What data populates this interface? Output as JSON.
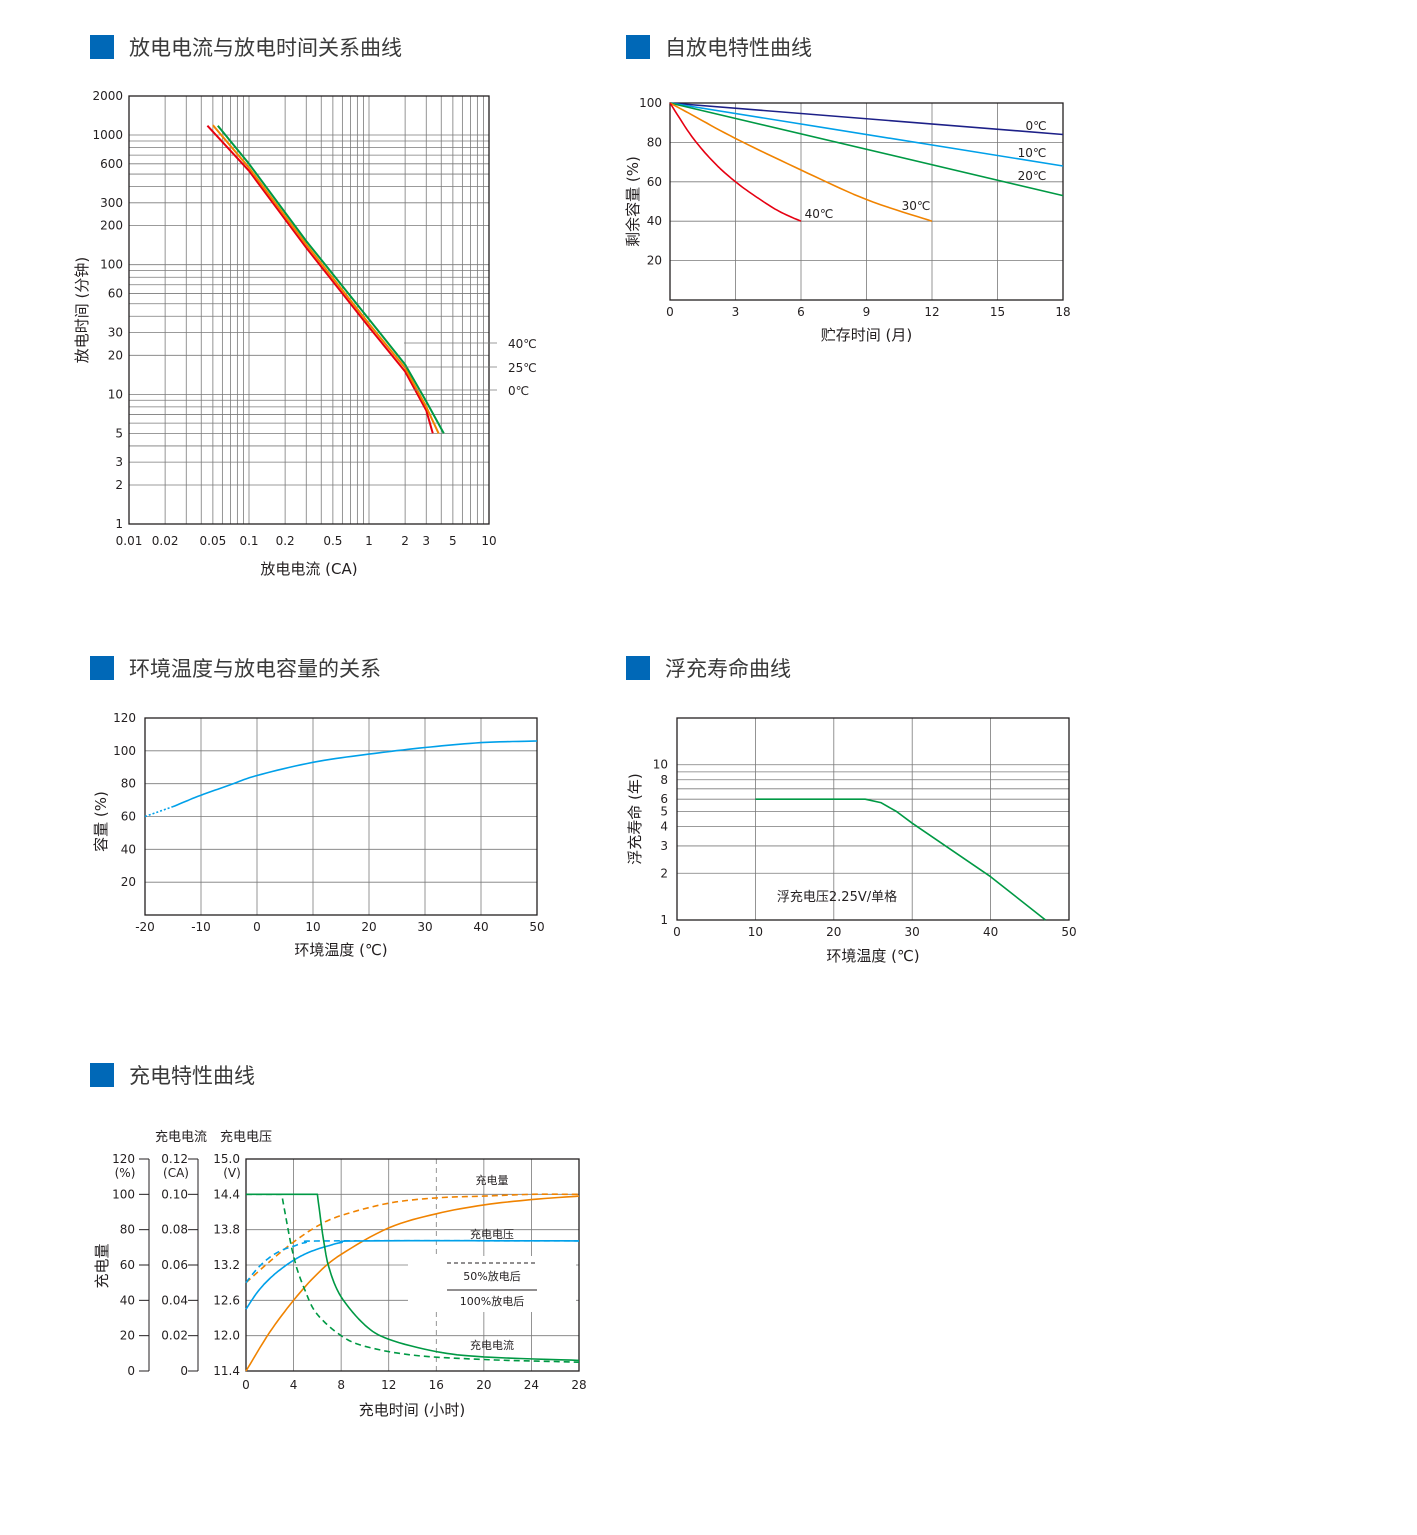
{
  "sections": {
    "s1": "放电电流与放电时间关系曲线",
    "s2": "自放电特性曲线",
    "s3": "环境温度与放电容量的关系",
    "s4": "浮充寿命曲线",
    "s5": "充电特性曲线"
  },
  "chart_data": [
    {
      "id": "discharge",
      "type": "line",
      "xscale": "log",
      "yscale": "log",
      "xlabel": "放电电流 (CA)",
      "ylabel": "放电时间 (分钟)",
      "xlim": [
        0.01,
        10
      ],
      "ylim": [
        1,
        2000
      ],
      "x_ticks": [
        "0.01",
        "0.02",
        "0.05",
        "0.1",
        "0.2",
        "0.5",
        "1",
        "2",
        "3",
        "5",
        "10"
      ],
      "y_ticks": [
        "2000",
        "1000",
        "600",
        "300",
        "200",
        "100",
        "60",
        "30",
        "20",
        "10",
        "5",
        "3",
        "2",
        "1"
      ],
      "colors": [
        "#e60012",
        "#f08300",
        "#009944"
      ],
      "series": [
        {
          "name": "40℃",
          "points": [
            [
              0.045,
              1180
            ],
            [
              0.1,
              530
            ],
            [
              0.3,
              135
            ],
            [
              1,
              33
            ],
            [
              2,
              15
            ],
            [
              3,
              7.5
            ],
            [
              3.4,
              5
            ]
          ]
        },
        {
          "name": "25℃",
          "points": [
            [
              0.05,
              1190
            ],
            [
              0.1,
              560
            ],
            [
              0.3,
              143
            ],
            [
              1,
              35
            ],
            [
              2,
              16
            ],
            [
              3,
              8
            ],
            [
              3.8,
              5
            ]
          ]
        },
        {
          "name": "0℃",
          "points": [
            [
              0.055,
              1180
            ],
            [
              0.1,
              600
            ],
            [
              0.3,
              152
            ],
            [
              1,
              38
            ],
            [
              2,
              17
            ],
            [
              3,
              8.8
            ],
            [
              4.2,
              5
            ]
          ]
        }
      ]
    },
    {
      "id": "selfdischarge",
      "type": "line",
      "xlabel": "贮存时间 (月)",
      "ylabel": "剩余容量 (%)",
      "xlim": [
        0,
        18
      ],
      "ylim": [
        0,
        100
      ],
      "x_ticks": [
        "0",
        "3",
        "6",
        "9",
        "12",
        "15",
        "18"
      ],
      "y_ticks": [
        "100",
        "80",
        "60",
        "40",
        "20"
      ],
      "colors": [
        "#1d2088",
        "#00a0e9",
        "#009944",
        "#f08300",
        "#e60012"
      ],
      "series": [
        {
          "name": "0℃",
          "points": [
            [
              0,
              100
            ],
            [
              18,
              84
            ]
          ]
        },
        {
          "name": "10℃",
          "points": [
            [
              0,
              100
            ],
            [
              18,
              68
            ]
          ]
        },
        {
          "name": "20℃",
          "points": [
            [
              0,
              100
            ],
            [
              18,
              53
            ]
          ]
        },
        {
          "name": "30℃",
          "points": [
            [
              0,
              100
            ],
            [
              1,
              94
            ],
            [
              3,
              82
            ],
            [
              6,
              66
            ],
            [
              9,
              51
            ],
            [
              12,
              40
            ]
          ]
        },
        {
          "name": "40℃",
          "points": [
            [
              0,
              100
            ],
            [
              1,
              83
            ],
            [
              2,
              70
            ],
            [
              3,
              60
            ],
            [
              4,
              52
            ],
            [
              5,
              45
            ],
            [
              6,
              40
            ]
          ]
        }
      ]
    },
    {
      "id": "tempcap",
      "type": "line",
      "xlabel": "环境温度 (℃)",
      "ylabel": "容量 (%)",
      "xlim": [
        -20,
        50
      ],
      "ylim": [
        0,
        120
      ],
      "x_ticks": [
        "-20",
        "-10",
        "0",
        "10",
        "20",
        "30",
        "40",
        "50"
      ],
      "y_ticks": [
        "120",
        "100",
        "80",
        "60",
        "40",
        "20"
      ],
      "colors": [
        "#00a0e9"
      ],
      "series": [
        {
          "dashed_points": [
            [
              -20,
              60
            ],
            [
              -15,
              66
            ]
          ],
          "points": [
            [
              -15,
              66
            ],
            [
              -10,
              73
            ],
            [
              -5,
              79
            ],
            [
              0,
              85
            ],
            [
              10,
              93
            ],
            [
              20,
              98
            ],
            [
              30,
              102
            ],
            [
              40,
              105
            ],
            [
              50,
              106
            ]
          ]
        }
      ]
    },
    {
      "id": "floatlife",
      "type": "line",
      "yscale": "log",
      "xlabel": "环境温度 (℃)",
      "ylabel": "浮充寿命 (年)",
      "xlim": [
        0,
        50
      ],
      "ylim": [
        1,
        20
      ],
      "x_ticks": [
        "0",
        "10",
        "20",
        "30",
        "40",
        "50"
      ],
      "y_ticks": [
        "10",
        "8",
        "6",
        "5",
        "4",
        "3",
        "2",
        "1"
      ],
      "annotation": "浮充电压2.25V/单格",
      "colors": [
        "#009944"
      ],
      "series": [
        {
          "points": [
            [
              10,
              6
            ],
            [
              24,
              6
            ],
            [
              26,
              5.7
            ],
            [
              28,
              5
            ],
            [
              30,
              4.2
            ],
            [
              40,
              1.9
            ],
            [
              47,
              1
            ]
          ]
        }
      ]
    },
    {
      "id": "charge",
      "type": "line",
      "xlabel": "充电时间 (小时)",
      "ylabel": "充电量",
      "axis_headers": [
        "充电电流",
        "充电电压"
      ],
      "units_pct": "(%)",
      "units_ca": "(CA)",
      "units_v": "(V)",
      "xlim": [
        0,
        28
      ],
      "x_ticks": [
        "0",
        "4",
        "8",
        "12",
        "16",
        "20",
        "24",
        "28"
      ],
      "y_pct_ticks": [
        "120",
        "100",
        "80",
        "60",
        "40",
        "20",
        "0"
      ],
      "y_ca_ticks": [
        "0.12",
        "0.10",
        "0.08",
        "0.06",
        "0.04",
        "0.02",
        "0"
      ],
      "y_v_ticks": [
        "15.0",
        "14.4",
        "13.8",
        "13.2",
        "12.6",
        "12.0",
        "11.4"
      ],
      "vlim": [
        11.4,
        15.0
      ],
      "labels": {
        "charge_amount": "充电量",
        "charge_voltage": "充电电压",
        "charge_current": "充电电流"
      },
      "legend": {
        "dashed": "50%放电后",
        "solid": "100%放电后"
      },
      "colors": {
        "amount": "#f08300",
        "voltage": "#00a0e9",
        "current": "#009944"
      },
      "series": [
        {
          "name": "充电量",
          "style": "dashed",
          "points": [
            [
              0,
              50
            ],
            [
              2,
              62
            ],
            [
              4,
              73
            ],
            [
              6,
              82
            ],
            [
              8,
              88
            ],
            [
              12,
              95
            ],
            [
              16,
              98
            ],
            [
              20,
              99
            ],
            [
              24,
              100
            ],
            [
              28,
              100
            ]
          ]
        },
        {
          "name": "充电量",
          "style": "solid",
          "points": [
            [
              0,
              0
            ],
            [
              2,
              22
            ],
            [
              4,
              40
            ],
            [
              6,
              55
            ],
            [
              8,
              66
            ],
            [
              12,
              81
            ],
            [
              16,
              89
            ],
            [
              20,
              94
            ],
            [
              24,
              97
            ],
            [
              28,
              99
            ]
          ]
        },
        {
          "name": "充电电压",
          "style": "dashed",
          "points": [
            [
              0,
              12.9
            ],
            [
              1,
              13.15
            ],
            [
              2,
              13.33
            ],
            [
              3,
              13.45
            ],
            [
              4,
              13.52
            ],
            [
              5,
              13.58
            ],
            [
              7,
              13.61
            ],
            [
              28,
              13.61
            ]
          ]
        },
        {
          "name": "充电电压",
          "style": "solid",
          "points": [
            [
              0,
              12.45
            ],
            [
              1,
              12.75
            ],
            [
              2,
              12.97
            ],
            [
              3,
              13.14
            ],
            [
              4,
              13.28
            ],
            [
              5,
              13.39
            ],
            [
              6,
              13.47
            ],
            [
              7,
              13.53
            ],
            [
              8,
              13.58
            ],
            [
              10,
              13.61
            ],
            [
              28,
              13.61
            ]
          ]
        },
        {
          "name": "充电电流",
          "style": "dashed",
          "points": [
            [
              0,
              0.1
            ],
            [
              3,
              0.1
            ],
            [
              4,
              0.065
            ],
            [
              5,
              0.045
            ],
            [
              6,
              0.032
            ],
            [
              8,
              0.02
            ],
            [
              10,
              0.014
            ],
            [
              14,
              0.009
            ],
            [
              20,
              0.0065
            ],
            [
              28,
              0.005
            ]
          ]
        },
        {
          "name": "充电电流",
          "style": "solid",
          "points": [
            [
              0,
              0.1
            ],
            [
              6,
              0.1
            ],
            [
              6.5,
              0.075
            ],
            [
              7,
              0.058
            ],
            [
              8,
              0.042
            ],
            [
              10,
              0.026
            ],
            [
              12,
              0.018
            ],
            [
              16,
              0.011
            ],
            [
              20,
              0.008
            ],
            [
              28,
              0.006
            ]
          ]
        }
      ]
    }
  ]
}
